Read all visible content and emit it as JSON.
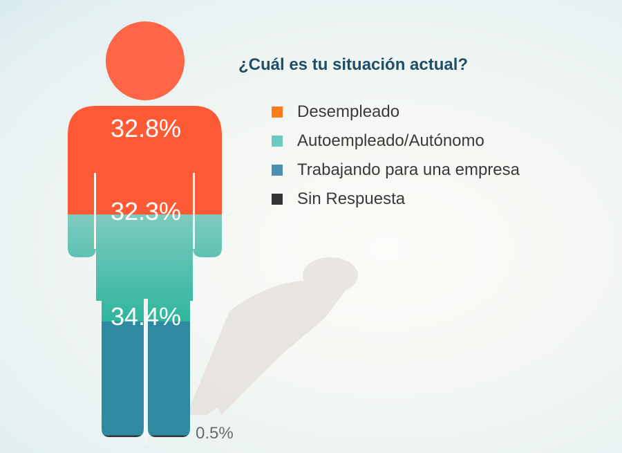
{
  "chart_data": {
    "type": "pictograph",
    "title": "¿Cuál es tu situación actual?",
    "series": [
      {
        "name": "Desempleado",
        "value": 32.8,
        "label": "32.8%",
        "color": "#ff5a36",
        "legend_color": "#ff7a1a"
      },
      {
        "name": "Autoempleado/Autónomo",
        "value": 32.3,
        "label": "32.3%",
        "color": "#3fbfa8",
        "legend_color": "#6ecabd"
      },
      {
        "name": "Trabajando para una empresa",
        "value": 34.4,
        "label": "34.4%",
        "color": "#2d8aa0",
        "legend_color": "#4a8fb0"
      },
      {
        "name": "Sin Respuesta",
        "value": 0.5,
        "label": "0.5%",
        "color": "#333333",
        "legend_color": "#333333"
      }
    ],
    "legend_position": "right",
    "icon": "person-icon"
  }
}
